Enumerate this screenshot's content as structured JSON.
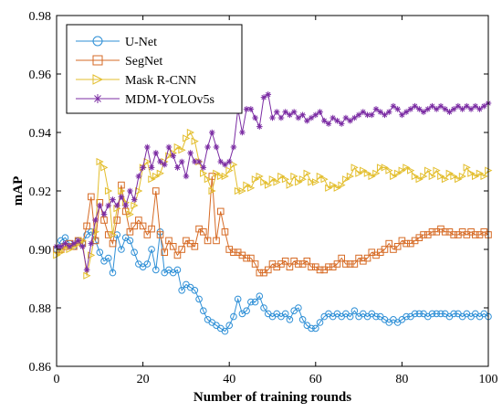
{
  "chart_data": {
    "type": "line",
    "title": "",
    "xlabel": "Number of training rounds",
    "ylabel": "mAP",
    "xlim": [
      0,
      100
    ],
    "ylim": [
      0.86,
      0.98
    ],
    "xticks": [
      0,
      20,
      40,
      60,
      80,
      100
    ],
    "yticks": [
      0.86,
      0.88,
      0.9,
      0.92,
      0.94,
      0.96,
      0.98
    ],
    "legend_position": "top-left",
    "grid": false,
    "x": [
      0,
      1,
      2,
      3,
      4,
      5,
      6,
      7,
      8,
      9,
      10,
      11,
      12,
      13,
      14,
      15,
      16,
      17,
      18,
      19,
      20,
      21,
      22,
      23,
      24,
      25,
      26,
      27,
      28,
      29,
      30,
      31,
      32,
      33,
      34,
      35,
      36,
      37,
      38,
      39,
      40,
      41,
      42,
      43,
      44,
      45,
      46,
      47,
      48,
      49,
      50,
      51,
      52,
      53,
      54,
      55,
      56,
      57,
      58,
      59,
      60,
      61,
      62,
      63,
      64,
      65,
      66,
      67,
      68,
      69,
      70,
      71,
      72,
      73,
      74,
      75,
      76,
      77,
      78,
      79,
      80,
      81,
      82,
      83,
      84,
      85,
      86,
      87,
      88,
      89,
      90,
      91,
      92,
      93,
      94,
      95,
      96,
      97,
      98,
      99,
      100
    ],
    "series": [
      {
        "name": "U-Net",
        "color": "#2e8fd6",
        "marker": "circle",
        "values": [
          0.9,
          0.903,
          0.904,
          0.902,
          0.901,
          0.903,
          0.902,
          0.905,
          0.906,
          0.903,
          0.899,
          0.896,
          0.897,
          0.892,
          0.905,
          0.9,
          0.904,
          0.903,
          0.899,
          0.895,
          0.894,
          0.895,
          0.9,
          0.893,
          0.906,
          0.892,
          0.893,
          0.892,
          0.893,
          0.886,
          0.888,
          0.887,
          0.886,
          0.883,
          0.879,
          0.876,
          0.875,
          0.874,
          0.873,
          0.872,
          0.874,
          0.877,
          0.883,
          0.878,
          0.879,
          0.882,
          0.882,
          0.884,
          0.88,
          0.878,
          0.877,
          0.878,
          0.877,
          0.878,
          0.876,
          0.879,
          0.88,
          0.876,
          0.874,
          0.873,
          0.873,
          0.875,
          0.877,
          0.878,
          0.877,
          0.878,
          0.877,
          0.878,
          0.877,
          0.879,
          0.877,
          0.878,
          0.877,
          0.878,
          0.877,
          0.877,
          0.876,
          0.875,
          0.876,
          0.875,
          0.876,
          0.877,
          0.877,
          0.878,
          0.878,
          0.878,
          0.877,
          0.878,
          0.878,
          0.878,
          0.878,
          0.877,
          0.878,
          0.878,
          0.877,
          0.878,
          0.877,
          0.878,
          0.877,
          0.878,
          0.877
        ]
      },
      {
        "name": "SegNet",
        "color": "#d66a24",
        "marker": "square",
        "values": [
          0.9,
          0.9,
          0.901,
          0.902,
          0.901,
          0.903,
          0.902,
          0.908,
          0.918,
          0.903,
          0.916,
          0.91,
          0.905,
          0.902,
          0.91,
          0.922,
          0.913,
          0.906,
          0.908,
          0.91,
          0.908,
          0.905,
          0.907,
          0.92,
          0.905,
          0.899,
          0.903,
          0.901,
          0.898,
          0.9,
          0.903,
          0.902,
          0.901,
          0.907,
          0.906,
          0.903,
          0.925,
          0.903,
          0.913,
          0.906,
          0.9,
          0.899,
          0.899,
          0.898,
          0.897,
          0.897,
          0.895,
          0.892,
          0.892,
          0.893,
          0.895,
          0.894,
          0.895,
          0.896,
          0.894,
          0.896,
          0.895,
          0.895,
          0.896,
          0.894,
          0.894,
          0.893,
          0.893,
          0.894,
          0.894,
          0.895,
          0.897,
          0.895,
          0.895,
          0.895,
          0.897,
          0.896,
          0.897,
          0.899,
          0.898,
          0.899,
          0.9,
          0.902,
          0.9,
          0.901,
          0.903,
          0.902,
          0.902,
          0.903,
          0.904,
          0.905,
          0.905,
          0.906,
          0.906,
          0.907,
          0.906,
          0.906,
          0.905,
          0.905,
          0.906,
          0.905,
          0.906,
          0.905,
          0.905,
          0.906,
          0.905
        ]
      },
      {
        "name": "Mask R-CNN",
        "color": "#e3be2d",
        "marker": "triangle-right",
        "values": [
          0.898,
          0.899,
          0.901,
          0.9,
          0.901,
          0.902,
          0.903,
          0.891,
          0.898,
          0.906,
          0.93,
          0.928,
          0.92,
          0.905,
          0.914,
          0.92,
          0.916,
          0.912,
          0.915,
          0.92,
          0.928,
          0.93,
          0.924,
          0.925,
          0.926,
          0.93,
          0.932,
          0.933,
          0.935,
          0.934,
          0.938,
          0.94,
          0.937,
          0.93,
          0.926,
          0.924,
          0.92,
          0.926,
          0.925,
          0.925,
          0.927,
          0.929,
          0.92,
          0.92,
          0.922,
          0.921,
          0.924,
          0.925,
          0.923,
          0.922,
          0.924,
          0.923,
          0.925,
          0.924,
          0.922,
          0.925,
          0.923,
          0.924,
          0.926,
          0.923,
          0.923,
          0.925,
          0.924,
          0.921,
          0.922,
          0.921,
          0.922,
          0.924,
          0.925,
          0.928,
          0.926,
          0.927,
          0.926,
          0.925,
          0.926,
          0.928,
          0.928,
          0.927,
          0.925,
          0.926,
          0.927,
          0.928,
          0.927,
          0.925,
          0.924,
          0.925,
          0.927,
          0.925,
          0.927,
          0.925,
          0.924,
          0.926,
          0.925,
          0.924,
          0.925,
          0.928,
          0.926,
          0.925,
          0.926,
          0.925,
          0.927
        ]
      },
      {
        "name": "MDM-YOLOv5s",
        "color": "#7b2ca3",
        "marker": "asterisk",
        "values": [
          0.901,
          0.901,
          0.902,
          0.901,
          0.902,
          0.903,
          0.901,
          0.893,
          0.902,
          0.91,
          0.915,
          0.912,
          0.915,
          0.917,
          0.915,
          0.918,
          0.915,
          0.92,
          0.917,
          0.925,
          0.928,
          0.935,
          0.928,
          0.933,
          0.93,
          0.929,
          0.935,
          0.932,
          0.928,
          0.93,
          0.925,
          0.933,
          0.93,
          0.93,
          0.928,
          0.935,
          0.94,
          0.935,
          0.93,
          0.929,
          0.93,
          0.935,
          0.948,
          0.94,
          0.948,
          0.948,
          0.945,
          0.942,
          0.952,
          0.953,
          0.945,
          0.947,
          0.945,
          0.947,
          0.946,
          0.947,
          0.945,
          0.946,
          0.944,
          0.945,
          0.946,
          0.947,
          0.944,
          0.943,
          0.945,
          0.944,
          0.943,
          0.945,
          0.944,
          0.945,
          0.946,
          0.947,
          0.946,
          0.946,
          0.948,
          0.947,
          0.946,
          0.947,
          0.949,
          0.948,
          0.946,
          0.947,
          0.948,
          0.949,
          0.948,
          0.947,
          0.948,
          0.949,
          0.948,
          0.949,
          0.948,
          0.947,
          0.948,
          0.949,
          0.948,
          0.949,
          0.948,
          0.949,
          0.948,
          0.949,
          0.95
        ]
      }
    ]
  }
}
